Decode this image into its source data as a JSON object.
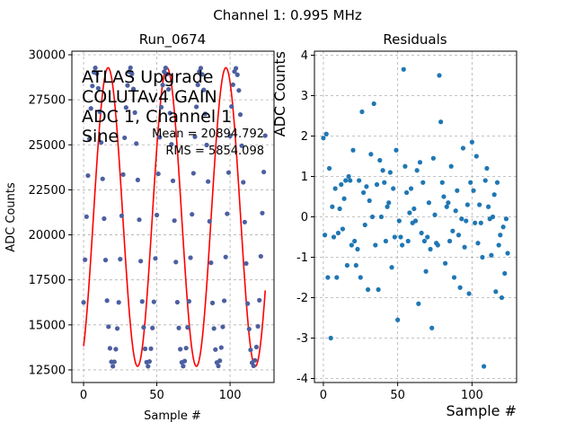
{
  "figure": {
    "suptitle": "Channel 1: 0.995 MHz"
  },
  "colors": {
    "points": "#4c5fa0",
    "fit": "#ff0000",
    "residual_points": "#1f77b4",
    "grid": "#b0b0b0"
  },
  "chart_data": [
    {
      "type": "scatter",
      "title": "Run_0674",
      "xlabel": "Sample #",
      "ylabel": "ADC Counts",
      "xlim": [
        -8,
        130
      ],
      "ylim": [
        11800,
        30200
      ],
      "xticks": [
        0,
        50,
        100
      ],
      "yticks": [
        12500,
        15000,
        17500,
        20000,
        22500,
        25000,
        27500,
        30000
      ],
      "grid": true,
      "annotation_lines": [
        "ATLAS Upgrade",
        "COLUTAv4 GAIN",
        "ADC 1, Channel 1",
        "Sine"
      ],
      "stats": [
        "Mean = 20894.792",
        "RMS = 5854.098"
      ],
      "series": [
        {
          "kind": "points",
          "x": [
            0,
            1,
            2,
            3,
            4,
            5,
            6,
            7,
            8,
            9,
            10,
            11,
            12,
            13,
            14,
            15,
            16,
            17,
            18,
            19,
            20,
            21,
            22,
            23,
            24,
            25,
            26,
            27,
            28,
            29,
            30,
            31,
            32,
            33,
            34,
            35,
            36,
            37,
            38,
            39,
            40,
            41,
            42,
            43,
            44,
            45,
            46,
            47,
            48,
            49,
            50,
            51,
            52,
            53,
            54,
            55,
            56,
            57,
            58,
            59,
            60,
            61,
            62,
            63,
            64,
            65,
            66,
            67,
            68,
            69,
            70,
            71,
            72,
            73,
            74,
            75,
            76,
            77,
            78,
            79,
            80,
            81,
            82,
            83,
            84,
            85,
            86,
            87,
            88,
            89,
            90,
            91,
            92,
            93,
            94,
            95,
            96,
            97,
            98,
            99,
            100,
            101,
            102,
            103,
            104,
            105,
            106,
            107,
            108,
            109,
            110,
            111,
            112,
            113,
            114,
            115,
            116,
            117,
            118,
            119,
            120,
            121,
            122,
            123,
            124
          ],
          "y": [
            16250,
            18620,
            21010,
            23290,
            25330,
            27020,
            28270,
            29030,
            29270,
            28960,
            28140,
            26840,
            25130,
            23110,
            20900,
            18600,
            16350,
            14900,
            13700,
            12950,
            12700,
            12950,
            13650,
            14800,
            16250,
            18650,
            21060,
            23350,
            25390,
            27070,
            28300,
            29060,
            29280,
            28940,
            28100,
            26790,
            25070,
            23050,
            20840,
            18540,
            16300,
            14860,
            13670,
            12930,
            12700,
            12970,
            13680,
            14830,
            16280,
            18690,
            21100,
            23390,
            25420,
            27090,
            28320,
            29060,
            29270,
            28930,
            28080,
            26760,
            25030,
            23000,
            20790,
            18490,
            16260,
            14830,
            13650,
            12920,
            12710,
            12990,
            13710,
            14860,
            16310,
            18730,
            21140,
            23420,
            25450,
            27110,
            28330,
            29070,
            29260,
            28910,
            28050,
            26720,
            24990,
            22960,
            20750,
            18450,
            16220,
            14800,
            13630,
            12910,
            12720,
            13010,
            13740,
            14890,
            16340,
            18770,
            21170,
            23460,
            25480,
            27130,
            28340,
            29070,
            29250,
            28890,
            28020,
            26680,
            24950,
            22920,
            20710,
            18410,
            16180,
            14770,
            13610,
            12900,
            12730,
            13030,
            13770,
            14920,
            16370,
            18810,
            21210,
            23490,
            25510
          ]
        },
        {
          "kind": "fit",
          "name": "",
          "amplitude": 8290,
          "offset": 20990,
          "samples_per_period": 40.2,
          "phase_sample": 0.6
        }
      ]
    },
    {
      "type": "scatter",
      "title": "Residuals",
      "xlabel": "Sample #",
      "ylabel": "ADC Counts",
      "xlim": [
        -6,
        130
      ],
      "ylim": [
        -4.1,
        4.1
      ],
      "xticks": [
        0,
        50,
        100
      ],
      "yticks": [
        -4,
        -3,
        -2,
        -1,
        0,
        1,
        2,
        3,
        4
      ],
      "grid": true,
      "series": [
        {
          "kind": "points",
          "x": [
            0,
            1,
            2,
            3,
            4,
            5,
            6,
            7,
            8,
            9,
            10,
            11,
            12,
            13,
            14,
            15,
            16,
            17,
            18,
            19,
            20,
            21,
            22,
            23,
            24,
            25,
            26,
            27,
            28,
            29,
            30,
            31,
            32,
            33,
            34,
            35,
            36,
            37,
            38,
            39,
            40,
            41,
            42,
            43,
            44,
            45,
            46,
            47,
            48,
            49,
            50,
            51,
            52,
            53,
            54,
            55,
            56,
            57,
            58,
            59,
            60,
            61,
            62,
            63,
            64,
            65,
            66,
            67,
            68,
            69,
            70,
            71,
            72,
            73,
            74,
            75,
            76,
            77,
            78,
            79,
            80,
            81,
            82,
            83,
            84,
            85,
            86,
            87,
            88,
            89,
            90,
            91,
            92,
            93,
            94,
            95,
            96,
            97,
            98,
            99,
            100,
            101,
            102,
            103,
            104,
            105,
            106,
            107,
            108,
            109,
            110,
            111,
            112,
            113,
            114,
            115,
            116,
            117,
            118,
            119,
            120,
            121,
            122,
            123,
            124
          ],
          "y": [
            1.95,
            -0.45,
            2.05,
            -1.5,
            1.2,
            -3.0,
            0.25,
            -0.5,
            0.7,
            -1.5,
            -0.4,
            0.2,
            0.8,
            -0.3,
            0.45,
            0.9,
            -1.2,
            1.0,
            0.9,
            -0.7,
            1.65,
            -0.6,
            -1.2,
            -0.8,
            0.9,
            -1.5,
            2.6,
            0.6,
            -0.2,
            0.75,
            -1.8,
            0.4,
            1.55,
            0.0,
            2.8,
            -0.7,
            0.8,
            -1.8,
            1.4,
            0.0,
            1.15,
            0.85,
            -0.6,
            0.25,
            0.35,
            1.1,
            -1.25,
            0.7,
            -0.5,
            1.65,
            -2.55,
            -0.1,
            -0.5,
            -0.7,
            3.65,
            1.25,
            0.6,
            -0.6,
            0.1,
            0.7,
            -0.15,
            0.2,
            -0.1,
            1.15,
            -2.15,
            1.35,
            -0.4,
            0.85,
            -0.6,
            -1.35,
            -0.5,
            0.35,
            -0.8,
            -2.75,
            1.45,
            0.05,
            -0.65,
            -0.7,
            3.5,
            2.35,
            0.85,
            0.5,
            -1.15,
            0.25,
            0.35,
            -0.6,
            1.25,
            -0.35,
            -1.5,
            0.15,
            0.65,
            -0.45,
            -1.75,
            -0.05,
            1.7,
            -0.75,
            -0.1,
            0.3,
            -1.9,
            0.85,
            1.85,
            0.65,
            -0.15,
            1.5,
            -0.65,
            0.3,
            -0.15,
            -1.0,
            -3.7,
            0.9,
            1.2,
            0.25,
            -0.05,
            -0.95,
            0.0,
            0.55,
            -1.85,
            0.85,
            -0.7,
            -0.45,
            -2.0,
            -0.25,
            -1.4,
            -0.05,
            -0.9
          ]
        }
      ]
    }
  ]
}
